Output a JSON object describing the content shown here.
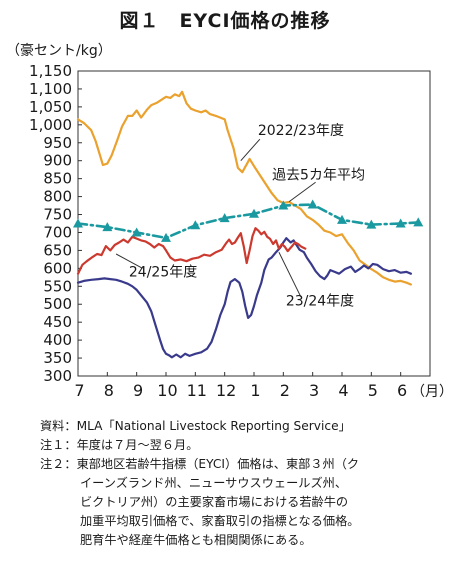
{
  "figure_title": "図１　EYCI価格の推移",
  "chart_data": {
    "type": "line",
    "y_unit_label": "（豪セント/kg）",
    "x_unit_label": "（月）",
    "ylim": [
      300,
      1150
    ],
    "y_ticks": [
      300,
      350,
      400,
      450,
      500,
      550,
      600,
      650,
      700,
      750,
      800,
      850,
      900,
      950,
      1000,
      1050,
      1100,
      1150
    ],
    "y_tick_labels": [
      "300",
      "350",
      "400",
      "450",
      "500",
      "550",
      "600",
      "650",
      "700",
      "750",
      "800",
      "850",
      "900",
      "950",
      "1,000",
      "1,050",
      "1,100",
      "1,150"
    ],
    "x_ticks": [
      7,
      8,
      9,
      10,
      11,
      12,
      1,
      2,
      3,
      4,
      5,
      6
    ],
    "grid": false,
    "series": [
      {
        "name": "2022/23年度",
        "color": "#eaa12e",
        "marker": "none",
        "points": [
          [
            0.0,
            1015
          ],
          [
            0.2,
            1005
          ],
          [
            0.45,
            985
          ],
          [
            0.6,
            955
          ],
          [
            0.75,
            915
          ],
          [
            0.85,
            888
          ],
          [
            1.0,
            892
          ],
          [
            1.15,
            915
          ],
          [
            1.35,
            960
          ],
          [
            1.5,
            995
          ],
          [
            1.7,
            1025
          ],
          [
            1.85,
            1025
          ],
          [
            2.0,
            1040
          ],
          [
            2.15,
            1020
          ],
          [
            2.35,
            1042
          ],
          [
            2.5,
            1055
          ],
          [
            2.7,
            1062
          ],
          [
            2.85,
            1070
          ],
          [
            3.0,
            1078
          ],
          [
            3.15,
            1075
          ],
          [
            3.3,
            1085
          ],
          [
            3.45,
            1080
          ],
          [
            3.55,
            1092
          ],
          [
            3.7,
            1060
          ],
          [
            3.85,
            1045
          ],
          [
            4.0,
            1040
          ],
          [
            4.2,
            1035
          ],
          [
            4.35,
            1040
          ],
          [
            4.5,
            1030
          ],
          [
            4.7,
            1025
          ],
          [
            4.85,
            1020
          ],
          [
            5.0,
            1015
          ],
          [
            5.1,
            985
          ],
          [
            5.3,
            935
          ],
          [
            5.45,
            880
          ],
          [
            5.6,
            868
          ],
          [
            5.75,
            890
          ],
          [
            5.85,
            905
          ],
          [
            6.0,
            885
          ],
          [
            6.2,
            860
          ],
          [
            6.4,
            835
          ],
          [
            6.6,
            810
          ],
          [
            6.8,
            790
          ],
          [
            7.0,
            782
          ],
          [
            7.2,
            785
          ],
          [
            7.4,
            775
          ],
          [
            7.6,
            765
          ],
          [
            7.8,
            745
          ],
          [
            8.0,
            735
          ],
          [
            8.2,
            722
          ],
          [
            8.4,
            705
          ],
          [
            8.6,
            700
          ],
          [
            8.8,
            690
          ],
          [
            9.0,
            695
          ],
          [
            9.2,
            670
          ],
          [
            9.4,
            650
          ],
          [
            9.6,
            622
          ],
          [
            9.8,
            610
          ],
          [
            10.0,
            598
          ],
          [
            10.2,
            588
          ],
          [
            10.4,
            575
          ],
          [
            10.6,
            568
          ],
          [
            10.8,
            563
          ],
          [
            11.0,
            565
          ],
          [
            11.2,
            560
          ],
          [
            11.35,
            555
          ]
        ]
      },
      {
        "name": "23/24年度",
        "color": "#3a3a8c",
        "marker": "none",
        "points": [
          [
            0.0,
            560
          ],
          [
            0.2,
            565
          ],
          [
            0.45,
            568
          ],
          [
            0.7,
            570
          ],
          [
            0.9,
            572
          ],
          [
            1.1,
            570
          ],
          [
            1.3,
            568
          ],
          [
            1.5,
            563
          ],
          [
            1.7,
            557
          ],
          [
            1.85,
            550
          ],
          [
            2.0,
            540
          ],
          [
            2.15,
            525
          ],
          [
            2.35,
            505
          ],
          [
            2.5,
            480
          ],
          [
            2.65,
            440
          ],
          [
            2.8,
            400
          ],
          [
            2.9,
            375
          ],
          [
            3.0,
            362
          ],
          [
            3.1,
            358
          ],
          [
            3.2,
            352
          ],
          [
            3.35,
            360
          ],
          [
            3.5,
            352
          ],
          [
            3.65,
            362
          ],
          [
            3.8,
            356
          ],
          [
            4.0,
            362
          ],
          [
            4.2,
            366
          ],
          [
            4.4,
            376
          ],
          [
            4.55,
            395
          ],
          [
            4.7,
            430
          ],
          [
            4.85,
            470
          ],
          [
            5.0,
            500
          ],
          [
            5.1,
            535
          ],
          [
            5.2,
            562
          ],
          [
            5.35,
            570
          ],
          [
            5.5,
            560
          ],
          [
            5.6,
            535
          ],
          [
            5.7,
            495
          ],
          [
            5.8,
            462
          ],
          [
            5.9,
            470
          ],
          [
            6.0,
            495
          ],
          [
            6.1,
            525
          ],
          [
            6.25,
            560
          ],
          [
            6.35,
            595
          ],
          [
            6.5,
            625
          ],
          [
            6.6,
            630
          ],
          [
            6.75,
            645
          ],
          [
            6.9,
            658
          ],
          [
            7.0,
            672
          ],
          [
            7.1,
            684
          ],
          [
            7.25,
            672
          ],
          [
            7.35,
            678
          ],
          [
            7.45,
            665
          ],
          [
            7.55,
            652
          ],
          [
            7.7,
            645
          ],
          [
            7.8,
            630
          ],
          [
            7.95,
            612
          ],
          [
            8.1,
            592
          ],
          [
            8.25,
            578
          ],
          [
            8.4,
            570
          ],
          [
            8.5,
            580
          ],
          [
            8.6,
            595
          ],
          [
            8.75,
            590
          ],
          [
            8.9,
            585
          ],
          [
            9.1,
            598
          ],
          [
            9.3,
            605
          ],
          [
            9.45,
            590
          ],
          [
            9.6,
            598
          ],
          [
            9.75,
            608
          ],
          [
            9.9,
            600
          ],
          [
            10.05,
            612
          ],
          [
            10.2,
            610
          ],
          [
            10.4,
            598
          ],
          [
            10.6,
            592
          ],
          [
            10.8,
            595
          ],
          [
            11.0,
            588
          ],
          [
            11.2,
            590
          ],
          [
            11.35,
            585
          ]
        ]
      },
      {
        "name": "24/25年度",
        "color": "#cc3a2f",
        "marker": "none",
        "points": [
          [
            0.0,
            585
          ],
          [
            0.15,
            610
          ],
          [
            0.3,
            620
          ],
          [
            0.5,
            632
          ],
          [
            0.65,
            640
          ],
          [
            0.8,
            637
          ],
          [
            0.95,
            662
          ],
          [
            1.1,
            650
          ],
          [
            1.25,
            665
          ],
          [
            1.4,
            672
          ],
          [
            1.55,
            680
          ],
          [
            1.7,
            672
          ],
          [
            1.85,
            688
          ],
          [
            2.0,
            683
          ],
          [
            2.15,
            678
          ],
          [
            2.3,
            675
          ],
          [
            2.45,
            668
          ],
          [
            2.6,
            658
          ],
          [
            2.75,
            668
          ],
          [
            2.9,
            662
          ],
          [
            3.0,
            650
          ],
          [
            3.15,
            630
          ],
          [
            3.3,
            622
          ],
          [
            3.5,
            625
          ],
          [
            3.7,
            620
          ],
          [
            3.9,
            627
          ],
          [
            4.1,
            630
          ],
          [
            4.3,
            638
          ],
          [
            4.5,
            635
          ],
          [
            4.7,
            645
          ],
          [
            4.9,
            652
          ],
          [
            5.05,
            670
          ],
          [
            5.15,
            680
          ],
          [
            5.25,
            668
          ],
          [
            5.35,
            672
          ],
          [
            5.45,
            686
          ],
          [
            5.55,
            698
          ],
          [
            5.65,
            662
          ],
          [
            5.75,
            615
          ],
          [
            5.85,
            650
          ],
          [
            5.95,
            690
          ],
          [
            6.05,
            712
          ],
          [
            6.15,
            705
          ],
          [
            6.25,
            695
          ],
          [
            6.35,
            702
          ],
          [
            6.45,
            688
          ],
          [
            6.55,
            682
          ],
          [
            6.65,
            668
          ],
          [
            6.75,
            678
          ],
          [
            6.85,
            655
          ],
          [
            6.95,
            668
          ],
          [
            7.05,
            660
          ],
          [
            7.15,
            648
          ],
          [
            7.3,
            662
          ],
          [
            7.4,
            672
          ],
          [
            7.5,
            668
          ],
          [
            7.62,
            660
          ],
          [
            7.75,
            655
          ]
        ]
      },
      {
        "name": "過去5カ年平均",
        "color": "#1a9aa0",
        "marker": "triangle",
        "points": [
          [
            0.0,
            725
          ],
          [
            1.0,
            715
          ],
          [
            2.0,
            700
          ],
          [
            3.0,
            685
          ],
          [
            4.0,
            720
          ],
          [
            5.0,
            740
          ],
          [
            6.0,
            752
          ],
          [
            7.0,
            775
          ],
          [
            8.0,
            778
          ],
          [
            9.0,
            735
          ],
          [
            10.0,
            722
          ],
          [
            11.0,
            725
          ],
          [
            11.6,
            728
          ]
        ]
      }
    ],
    "annotations": [
      {
        "text": "2022/23年度",
        "x": 7.6,
        "y": 985
      },
      {
        "text": "過去5カ年平均",
        "x": 8.2,
        "y": 862
      },
      {
        "text": "24/25年度",
        "x": 2.9,
        "y": 591
      },
      {
        "text": "23/24年度",
        "x": 8.25,
        "y": 511
      }
    ]
  },
  "notes": [
    {
      "label": "資料：",
      "text": "MLA「National Livestock Reporting Service」"
    },
    {
      "label": "注１：",
      "text": "年度は７月～翌６月。"
    },
    {
      "label": "注２：",
      "text": "東部地区若齢牛指標（EYCI）価格は、東部３州（ク"
    },
    {
      "label": "",
      "text": "イーンズランド州、ニューサウスウェールズ州、"
    },
    {
      "label": "",
      "text": "ビクトリア州）の主要家畜市場における若齢牛の"
    },
    {
      "label": "",
      "text": "加重平均取引価格で、家畜取引の指標となる価格。"
    },
    {
      "label": "",
      "text": "肥育牛や経産牛価格とも相関関係にある。"
    }
  ]
}
